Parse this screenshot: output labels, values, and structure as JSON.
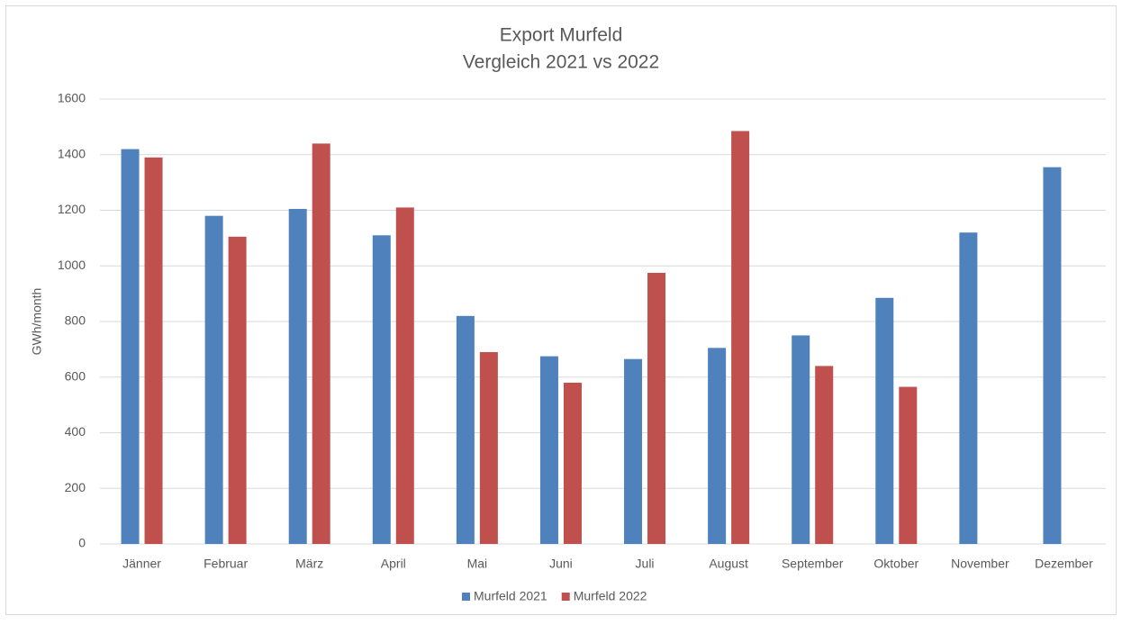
{
  "chart_data": {
    "type": "bar",
    "title": "Export Murfeld",
    "subtitle": "Vergleich 2021 vs 2022",
    "y_label": "GWh/month",
    "categories": [
      "Jänner",
      "Februar",
      "März",
      "April",
      "Mai",
      "Juni",
      "Juli",
      "August",
      "September",
      "Oktober",
      "November",
      "Dezember"
    ],
    "series": [
      {
        "name": "Murfeld 2021",
        "color": "#4f81bd",
        "values": [
          1420,
          1180,
          1205,
          1110,
          820,
          675,
          665,
          705,
          750,
          885,
          1120,
          1355
        ]
      },
      {
        "name": "Murfeld 2022",
        "color": "#c0504d",
        "values": [
          1390,
          1105,
          1440,
          1210,
          690,
          580,
          975,
          1485,
          640,
          565,
          null,
          null
        ]
      }
    ],
    "ylim": [
      0,
      1600
    ],
    "yticks": [
      0,
      200,
      400,
      600,
      800,
      1000,
      1200,
      1400,
      1600
    ],
    "grid": true,
    "legend": "bottom"
  }
}
